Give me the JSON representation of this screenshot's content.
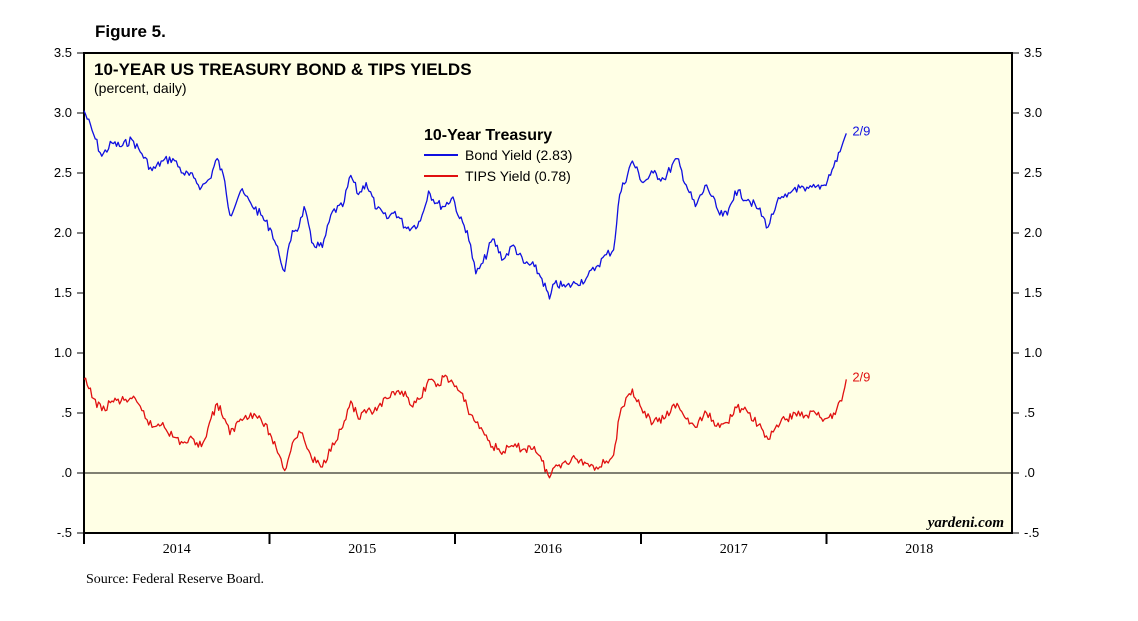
{
  "figure_label": "Figure 5.",
  "source_note": "Source: Federal Reserve Board.",
  "watermark": "yardeni.com",
  "colors": {
    "panel_bg": "#ffffe5",
    "bond": "#1010e0",
    "tips": "#e01010",
    "axis": "#000000"
  },
  "chart_data": {
    "type": "line",
    "title": "10-YEAR US TREASURY BOND & TIPS YIELDS",
    "subtitle": "(percent, daily)",
    "legend_title": "10-Year Treasury",
    "ylim": [
      -0.5,
      3.5
    ],
    "xlim": [
      "2014-01-01",
      "2019-01-01"
    ],
    "y_ticks": [
      -0.5,
      0.0,
      0.5,
      1.0,
      1.5,
      2.0,
      2.5,
      3.0,
      3.5
    ],
    "y_tick_labels": [
      "-.5",
      ".0",
      ".5",
      "1.0",
      "1.5",
      "2.0",
      "2.5",
      "3.0",
      "3.5"
    ],
    "x_labels": [
      "2014",
      "2015",
      "2016",
      "2017",
      "2018"
    ],
    "grid": false,
    "reference_line": 0.0,
    "end_marker_label": "2/9",
    "series": [
      {
        "name": "Bond Yield (2.83)",
        "color": "#1010e0",
        "points": [
          [
            "2014-01-01",
            3.02
          ],
          [
            "2014-01-20",
            2.82
          ],
          [
            "2014-02-05",
            2.64
          ],
          [
            "2014-02-25",
            2.75
          ],
          [
            "2014-03-15",
            2.72
          ],
          [
            "2014-04-05",
            2.78
          ],
          [
            "2014-04-25",
            2.66
          ],
          [
            "2014-05-15",
            2.52
          ],
          [
            "2014-06-05",
            2.6
          ],
          [
            "2014-06-25",
            2.62
          ],
          [
            "2014-07-15",
            2.5
          ],
          [
            "2014-08-05",
            2.46
          ],
          [
            "2014-08-20",
            2.38
          ],
          [
            "2014-09-05",
            2.45
          ],
          [
            "2014-09-20",
            2.62
          ],
          [
            "2014-10-05",
            2.43
          ],
          [
            "2014-10-15",
            2.15
          ],
          [
            "2014-11-05",
            2.35
          ],
          [
            "2014-11-25",
            2.25
          ],
          [
            "2014-12-15",
            2.15
          ],
          [
            "2015-01-05",
            2.02
          ],
          [
            "2015-01-20",
            1.82
          ],
          [
            "2015-01-31",
            1.68
          ],
          [
            "2015-02-15",
            2.02
          ],
          [
            "2015-02-28",
            2.05
          ],
          [
            "2015-03-10",
            2.22
          ],
          [
            "2015-03-25",
            1.92
          ],
          [
            "2015-04-15",
            1.88
          ],
          [
            "2015-05-05",
            2.18
          ],
          [
            "2015-05-25",
            2.22
          ],
          [
            "2015-06-10",
            2.48
          ],
          [
            "2015-06-25",
            2.32
          ],
          [
            "2015-07-10",
            2.42
          ],
          [
            "2015-07-31",
            2.2
          ],
          [
            "2015-08-20",
            2.12
          ],
          [
            "2015-09-05",
            2.18
          ],
          [
            "2015-09-25",
            2.05
          ],
          [
            "2015-10-10",
            2.05
          ],
          [
            "2015-10-25",
            2.1
          ],
          [
            "2015-11-10",
            2.35
          ],
          [
            "2015-11-25",
            2.25
          ],
          [
            "2015-12-10",
            2.22
          ],
          [
            "2015-12-28",
            2.3
          ],
          [
            "2016-01-10",
            2.12
          ],
          [
            "2016-01-25",
            2.02
          ],
          [
            "2016-02-11",
            1.66
          ],
          [
            "2016-02-25",
            1.75
          ],
          [
            "2016-03-15",
            1.95
          ],
          [
            "2016-04-05",
            1.78
          ],
          [
            "2016-04-25",
            1.9
          ],
          [
            "2016-05-15",
            1.75
          ],
          [
            "2016-06-05",
            1.72
          ],
          [
            "2016-06-20",
            1.62
          ],
          [
            "2016-07-05",
            1.45
          ],
          [
            "2016-07-15",
            1.58
          ],
          [
            "2016-08-05",
            1.55
          ],
          [
            "2016-08-25",
            1.58
          ],
          [
            "2016-09-15",
            1.62
          ],
          [
            "2016-10-05",
            1.72
          ],
          [
            "2016-10-25",
            1.82
          ],
          [
            "2016-11-08",
            1.86
          ],
          [
            "2016-11-20",
            2.32
          ],
          [
            "2016-12-15",
            2.6
          ],
          [
            "2017-01-05",
            2.42
          ],
          [
            "2017-01-25",
            2.5
          ],
          [
            "2017-02-15",
            2.45
          ],
          [
            "2017-03-13",
            2.62
          ],
          [
            "2017-03-31",
            2.4
          ],
          [
            "2017-04-18",
            2.22
          ],
          [
            "2017-05-10",
            2.4
          ],
          [
            "2017-06-05",
            2.15
          ],
          [
            "2017-06-20",
            2.15
          ],
          [
            "2017-07-05",
            2.35
          ],
          [
            "2017-07-31",
            2.28
          ],
          [
            "2017-08-20",
            2.2
          ],
          [
            "2017-09-08",
            2.05
          ],
          [
            "2017-09-25",
            2.25
          ],
          [
            "2017-10-15",
            2.3
          ],
          [
            "2017-10-31",
            2.38
          ],
          [
            "2017-11-20",
            2.35
          ],
          [
            "2017-12-10",
            2.38
          ],
          [
            "2017-12-28",
            2.4
          ],
          [
            "2018-01-15",
            2.55
          ],
          [
            "2018-01-31",
            2.72
          ],
          [
            "2018-02-09",
            2.83
          ]
        ]
      },
      {
        "name": "TIPS Yield (0.78)",
        "color": "#e01010",
        "points": [
          [
            "2014-01-01",
            0.78
          ],
          [
            "2014-01-20",
            0.62
          ],
          [
            "2014-02-05",
            0.52
          ],
          [
            "2014-02-25",
            0.6
          ],
          [
            "2014-03-15",
            0.6
          ],
          [
            "2014-04-05",
            0.62
          ],
          [
            "2014-04-25",
            0.52
          ],
          [
            "2014-05-15",
            0.38
          ],
          [
            "2014-06-05",
            0.42
          ],
          [
            "2014-06-25",
            0.3
          ],
          [
            "2014-07-15",
            0.25
          ],
          [
            "2014-08-05",
            0.28
          ],
          [
            "2014-08-20",
            0.22
          ],
          [
            "2014-09-05",
            0.42
          ],
          [
            "2014-09-20",
            0.58
          ],
          [
            "2014-10-05",
            0.45
          ],
          [
            "2014-10-15",
            0.32
          ],
          [
            "2014-11-05",
            0.45
          ],
          [
            "2014-11-25",
            0.5
          ],
          [
            "2014-12-15",
            0.45
          ],
          [
            "2015-01-05",
            0.3
          ],
          [
            "2015-01-20",
            0.15
          ],
          [
            "2015-01-31",
            0.02
          ],
          [
            "2015-02-15",
            0.25
          ],
          [
            "2015-02-28",
            0.35
          ],
          [
            "2015-03-10",
            0.28
          ],
          [
            "2015-03-25",
            0.12
          ],
          [
            "2015-04-15",
            0.05
          ],
          [
            "2015-05-05",
            0.25
          ],
          [
            "2015-05-25",
            0.38
          ],
          [
            "2015-06-10",
            0.6
          ],
          [
            "2015-06-25",
            0.45
          ],
          [
            "2015-07-10",
            0.5
          ],
          [
            "2015-07-31",
            0.52
          ],
          [
            "2015-08-20",
            0.62
          ],
          [
            "2015-09-05",
            0.65
          ],
          [
            "2015-09-25",
            0.68
          ],
          [
            "2015-10-10",
            0.55
          ],
          [
            "2015-10-25",
            0.62
          ],
          [
            "2015-11-10",
            0.78
          ],
          [
            "2015-11-25",
            0.72
          ],
          [
            "2015-12-10",
            0.8
          ],
          [
            "2015-12-28",
            0.75
          ],
          [
            "2016-01-10",
            0.68
          ],
          [
            "2016-01-25",
            0.55
          ],
          [
            "2016-02-11",
            0.42
          ],
          [
            "2016-02-25",
            0.35
          ],
          [
            "2016-03-15",
            0.22
          ],
          [
            "2016-04-05",
            0.18
          ],
          [
            "2016-04-25",
            0.22
          ],
          [
            "2016-05-15",
            0.2
          ],
          [
            "2016-06-05",
            0.22
          ],
          [
            "2016-06-20",
            0.1
          ],
          [
            "2016-07-05",
            -0.04
          ],
          [
            "2016-07-15",
            0.05
          ],
          [
            "2016-08-05",
            0.1
          ],
          [
            "2016-08-25",
            0.12
          ],
          [
            "2016-09-15",
            0.08
          ],
          [
            "2016-10-05",
            0.05
          ],
          [
            "2016-10-25",
            0.1
          ],
          [
            "2016-11-08",
            0.15
          ],
          [
            "2016-11-20",
            0.48
          ],
          [
            "2016-12-15",
            0.7
          ],
          [
            "2017-01-05",
            0.5
          ],
          [
            "2017-01-25",
            0.42
          ],
          [
            "2017-02-15",
            0.45
          ],
          [
            "2017-03-13",
            0.58
          ],
          [
            "2017-03-31",
            0.45
          ],
          [
            "2017-04-18",
            0.38
          ],
          [
            "2017-05-10",
            0.5
          ],
          [
            "2017-06-05",
            0.38
          ],
          [
            "2017-06-20",
            0.42
          ],
          [
            "2017-07-05",
            0.55
          ],
          [
            "2017-07-31",
            0.5
          ],
          [
            "2017-08-20",
            0.4
          ],
          [
            "2017-09-08",
            0.28
          ],
          [
            "2017-09-25",
            0.4
          ],
          [
            "2017-10-15",
            0.45
          ],
          [
            "2017-10-31",
            0.5
          ],
          [
            "2017-11-20",
            0.48
          ],
          [
            "2017-12-10",
            0.5
          ],
          [
            "2017-12-28",
            0.45
          ],
          [
            "2018-01-15",
            0.5
          ],
          [
            "2018-01-31",
            0.6
          ],
          [
            "2018-02-09",
            0.78
          ]
        ]
      }
    ]
  }
}
